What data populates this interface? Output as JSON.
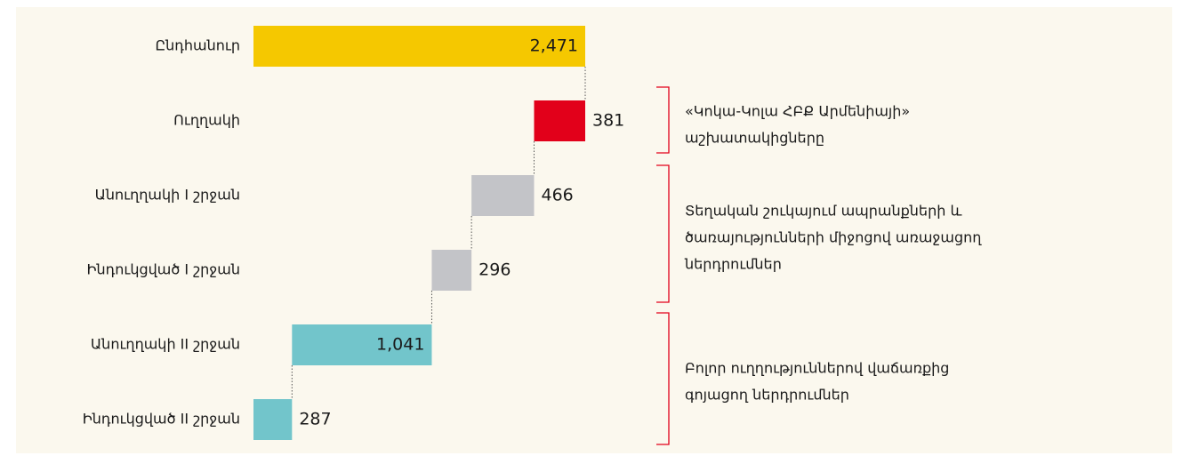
{
  "chart_data": {
    "type": "waterfall",
    "categories": [
      "Ընդհանուր",
      "Ուղղակի",
      "Անուղղակի I շրջան",
      "Ինդուկցված I շրջան",
      "Անուղղակի II շրջան",
      "Ինդուկցված II շրջան"
    ],
    "values": [
      2471,
      381,
      466,
      296,
      1041,
      287
    ],
    "value_labels": [
      "2,471",
      "381",
      "466",
      "296",
      "1,041",
      "287"
    ],
    "colors": [
      "#f5c800",
      "#e2001a",
      "#c3c4c8",
      "#c3c4c8",
      "#72c5cb",
      "#72c5cb"
    ],
    "annotations": [
      {
        "lines": [
          "«Կոկա-Կոլա ՀԲՔ Արմենիայի»",
          "աշխատակիցները"
        ]
      },
      {
        "lines": [
          "Տեղական շուկայում ապրանքների և",
          "ծառայությունների միջոցով առաջացող",
          "ներդրումներ"
        ]
      },
      {
        "lines": [
          "Բոլոր ուղղություններով վաճառքից",
          "գոյացող ներդրումներ"
        ]
      }
    ]
  }
}
